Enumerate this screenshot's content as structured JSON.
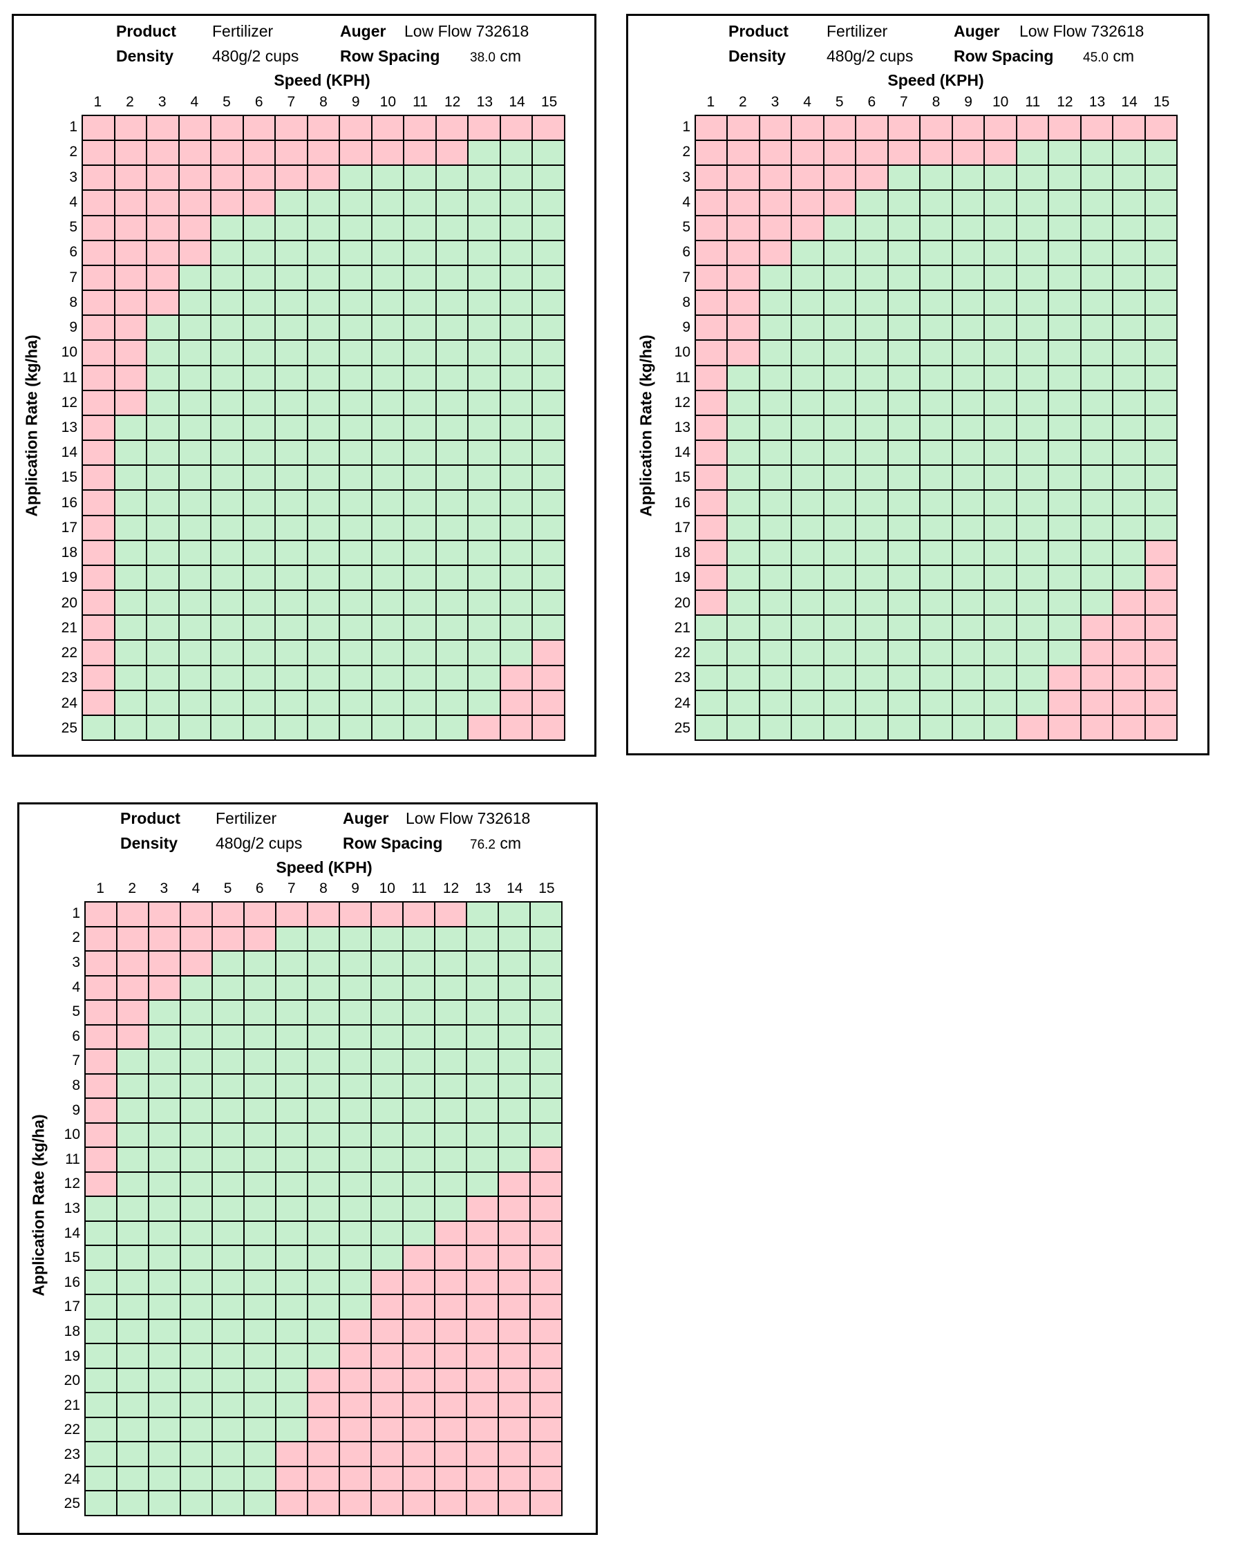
{
  "labels": {
    "product": "Product",
    "density": "Density",
    "auger": "Auger",
    "row_spacing": "Row Spacing",
    "speed_axis": "Speed (KPH)",
    "rate_axis": "Application Rate (kg/ha)",
    "unit_cm": "cm"
  },
  "colors": {
    "pink": "#ffc7ce",
    "green": "#c6efce",
    "border": "#000000"
  },
  "chart_data": [
    {
      "type": "heatmap",
      "product": "Fertilizer",
      "density": "480g/2 cups",
      "auger": "Low Flow 732618",
      "row_spacing": "38.0",
      "xlabel": "Speed (KPH)",
      "ylabel": "Application Rate (kg/ha)",
      "x": [
        1,
        2,
        3,
        4,
        5,
        6,
        7,
        8,
        9,
        10,
        11,
        12,
        13,
        14,
        15
      ],
      "y": [
        1,
        2,
        3,
        4,
        5,
        6,
        7,
        8,
        9,
        10,
        11,
        12,
        13,
        14,
        15,
        16,
        17,
        18,
        19,
        20,
        21,
        22,
        23,
        24,
        25
      ],
      "legend": {
        "P": "pink",
        "G": "green"
      },
      "rows": [
        "PPPPPPPPPPPPPPP",
        "PPPPPPPPPPPPGGG",
        "PPPPPPPPGGGGGGG",
        "PPPPPPGGGGGGGGG",
        "PPPPGGGGGGGGGGG",
        "PPPPGGGGGGGGGGG",
        "PPPGGGGGGGGGGGG",
        "PPPGGGGGGGGGGGG",
        "PPGGGGGGGGGGGGG",
        "PPGGGGGGGGGGGGG",
        "PPGGGGGGGGGGGGG",
        "PPGGGGGGGGGGGGG",
        "PGGGGGGGGGGGGGG",
        "PGGGGGGGGGGGGGG",
        "PGGGGGGGGGGGGGG",
        "PGGGGGGGGGGGGGG",
        "PGGGGGGGGGGGGGG",
        "PGGGGGGGGGGGGGG",
        "PGGGGGGGGGGGGGG",
        "PGGGGGGGGGGGGGG",
        "PGGGGGGGGGGGGGG",
        "PGGGGGGGGGGGGGP",
        "PGGGGGGGGGGGGPP",
        "PGGGGGGGGGGGGPP",
        "GGGGGGGGGGGGPPP"
      ]
    },
    {
      "type": "heatmap",
      "product": "Fertilizer",
      "density": "480g/2 cups",
      "auger": "Low Flow 732618",
      "row_spacing": "45.0",
      "xlabel": "Speed (KPH)",
      "ylabel": "Application Rate (kg/ha)",
      "x": [
        1,
        2,
        3,
        4,
        5,
        6,
        7,
        8,
        9,
        10,
        11,
        12,
        13,
        14,
        15
      ],
      "y": [
        1,
        2,
        3,
        4,
        5,
        6,
        7,
        8,
        9,
        10,
        11,
        12,
        13,
        14,
        15,
        16,
        17,
        18,
        19,
        20,
        21,
        22,
        23,
        24,
        25
      ],
      "legend": {
        "P": "pink",
        "G": "green"
      },
      "rows": [
        "PPPPPPPPPPPPPPP",
        "PPPPPPPPPPGGGGG",
        "PPPPPPGGGGGGGGG",
        "PPPPPGGGGGGGGGG",
        "PPPPGGGGGGGGGGG",
        "PPPGGGGGGGGGGGG",
        "PPGGGGGGGGGGGGG",
        "PPGGGGGGGGGGGGG",
        "PPGGGGGGGGGGGGG",
        "PPGGGGGGGGGGGGG",
        "PGGGGGGGGGGGGGG",
        "PGGGGGGGGGGGGGG",
        "PGGGGGGGGGGGGGG",
        "PGGGGGGGGGGGGGG",
        "PGGGGGGGGGGGGGG",
        "PGGGGGGGGGGGGGG",
        "PGGGGGGGGGGGGGG",
        "PGGGGGGGGGGGGGP",
        "PGGGGGGGGGGGGGP",
        "PGGGGGGGGGGGGPP",
        "GGGGGGGGGGGGPPP",
        "GGGGGGGGGGGGPPP",
        "GGGGGGGGGGGPPPP",
        "GGGGGGGGGGGPPPP",
        "GGGGGGGGGGPPPPP"
      ]
    },
    {
      "type": "heatmap",
      "product": "Fertilizer",
      "density": "480g/2 cups",
      "auger": "Low Flow 732618",
      "row_spacing": "76.2",
      "xlabel": "Speed (KPH)",
      "ylabel": "Application Rate (kg/ha)",
      "x": [
        1,
        2,
        3,
        4,
        5,
        6,
        7,
        8,
        9,
        10,
        11,
        12,
        13,
        14,
        15
      ],
      "y": [
        1,
        2,
        3,
        4,
        5,
        6,
        7,
        8,
        9,
        10,
        11,
        12,
        13,
        14,
        15,
        16,
        17,
        18,
        19,
        20,
        21,
        22,
        23,
        24,
        25
      ],
      "legend": {
        "P": "pink",
        "G": "green"
      },
      "rows": [
        "PPPPPPPPPPPPGGG",
        "PPPPPPGGGGGGGGG",
        "PPPPGGGGGGGGGGG",
        "PPPGGGGGGGGGGGG",
        "PPGGGGGGGGGGGGG",
        "PPGGGGGGGGGGGGG",
        "PGGGGGGGGGGGGGG",
        "PGGGGGGGGGGGGGG",
        "PGGGGGGGGGGGGGG",
        "PGGGGGGGGGGGGGG",
        "PGGGGGGGGGGGGGP",
        "PGGGGGGGGGGGGPP",
        "GGGGGGGGGGGGPPP",
        "GGGGGGGGGGGPPPP",
        "GGGGGGGGGGPPPPP",
        "GGGGGGGGGPPPPPP",
        "GGGGGGGGGPPPPPP",
        "GGGGGGGGPPPPPPP",
        "GGGGGGGGPPPPPPP",
        "GGGGGGGPPPPPPPP",
        "GGGGGGGPPPPPPPP",
        "GGGGGGGPPPPPPPP",
        "GGGGGGPPPPPPPPP",
        "GGGGGGPPPPPPPPP",
        "GGGGGGPPPPPPPPP"
      ]
    }
  ]
}
